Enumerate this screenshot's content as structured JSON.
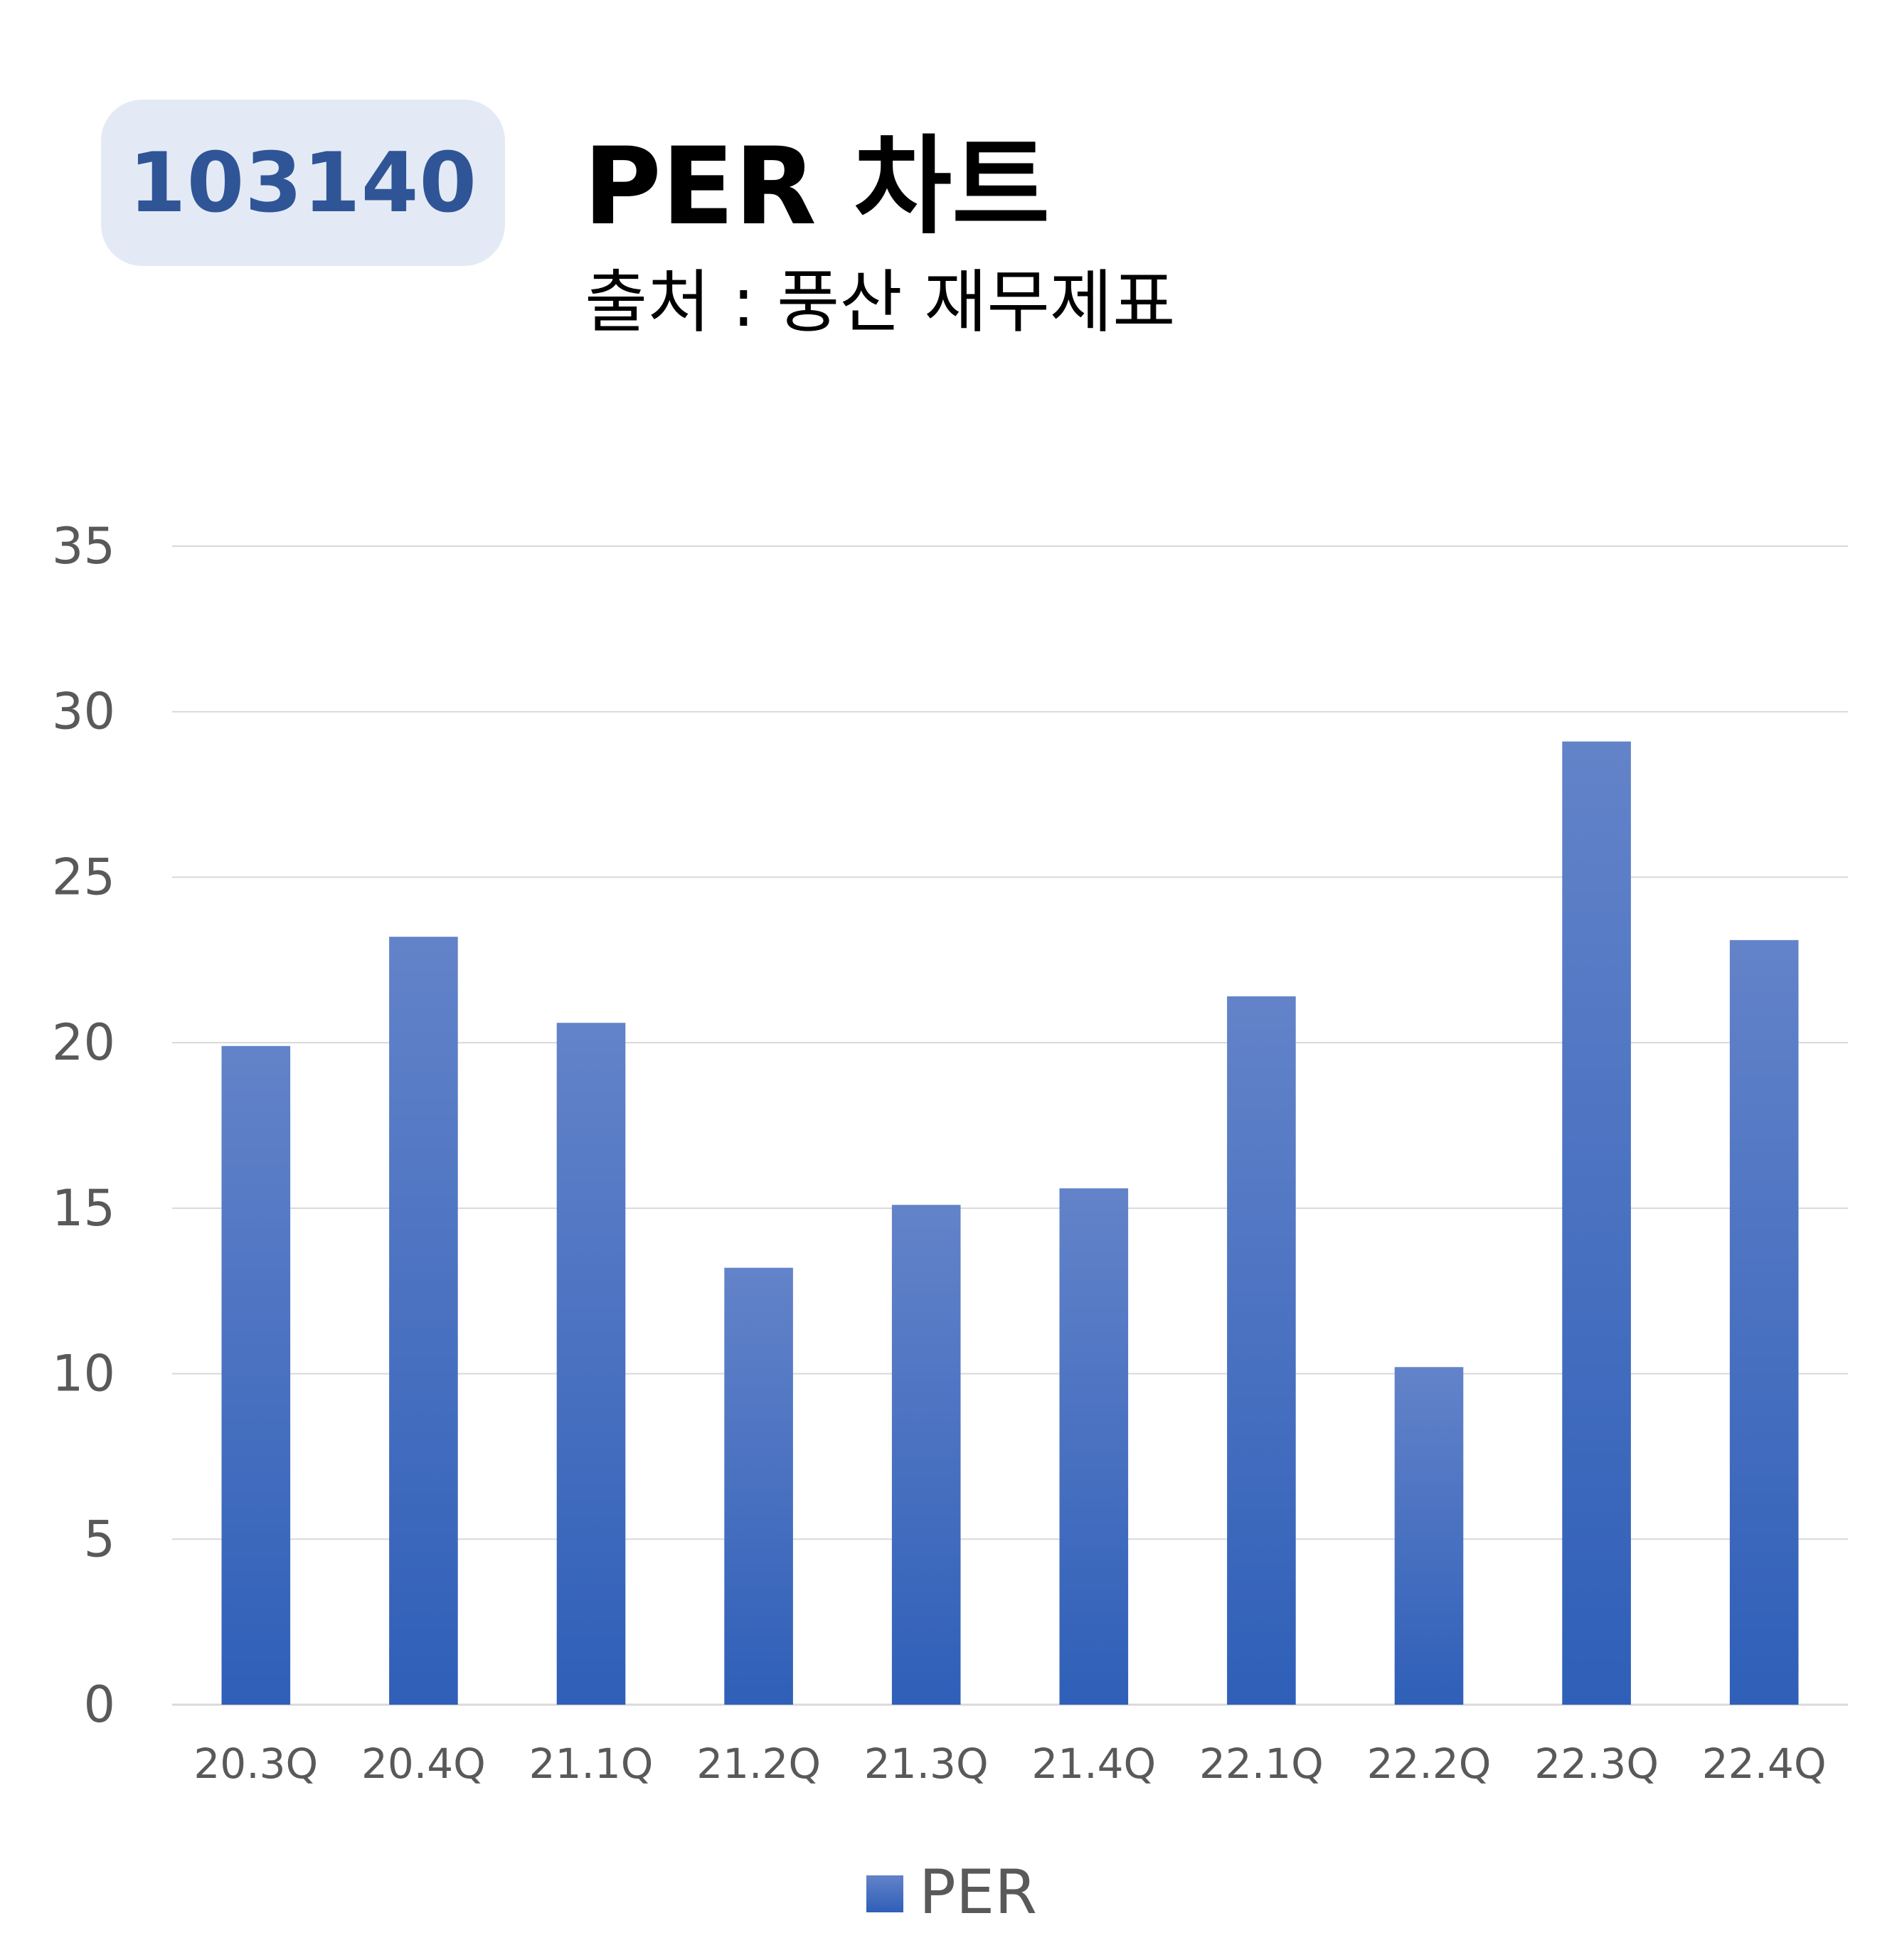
{
  "header": {
    "code": "103140",
    "title": "PER 차트",
    "subtitle": "출처 : 풍산 재무제표"
  },
  "colors": {
    "bar_top": "#6383c9",
    "bar_bottom": "#2f5fb8",
    "badge_bg": "#e4eaf5",
    "badge_text": "#2f5597",
    "grid": "#d9d9d9",
    "tick_text": "#595959"
  },
  "chart_data": {
    "type": "bar",
    "categories": [
      "20.3Q",
      "20.4Q",
      "21.1Q",
      "21.2Q",
      "21.3Q",
      "21.4Q",
      "22.1Q",
      "22.2Q",
      "22.3Q",
      "22.4Q"
    ],
    "series": [
      {
        "name": "PER",
        "values": [
          19.9,
          23.2,
          20.6,
          13.2,
          15.1,
          15.6,
          21.4,
          10.2,
          29.1,
          23.1
        ]
      }
    ],
    "ylim": [
      0,
      35
    ],
    "yticks": [
      0,
      5,
      10,
      15,
      20,
      25,
      30,
      35
    ],
    "grid": true,
    "legend": "bottom"
  }
}
